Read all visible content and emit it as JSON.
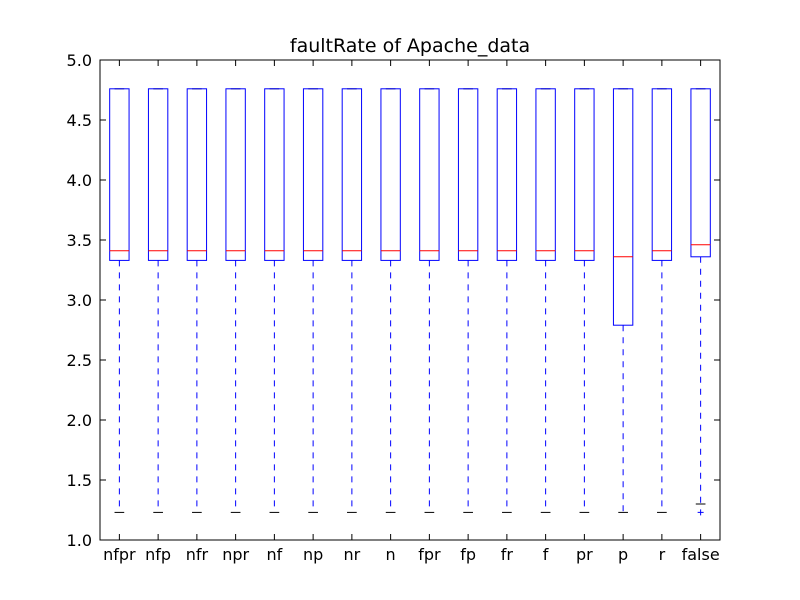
{
  "chart_data": {
    "type": "boxplot",
    "title": "faultRate of Apache_data",
    "xlabel": "",
    "ylabel": "",
    "ylim": [
      1.0,
      5.0
    ],
    "yticks": [
      "1.0",
      "1.5",
      "2.0",
      "2.5",
      "3.0",
      "3.5",
      "4.0",
      "4.5",
      "5.0"
    ],
    "categories": [
      "nfpr",
      "nfp",
      "nfr",
      "npr",
      "nf",
      "np",
      "nr",
      "n",
      "fpr",
      "fp",
      "fr",
      "f",
      "pr",
      "p",
      "r",
      "false"
    ],
    "boxes": [
      {
        "whislo": 1.23,
        "q1": 3.33,
        "med": 3.41,
        "q3": 4.76,
        "whishi": 4.76,
        "fliers": []
      },
      {
        "whislo": 1.23,
        "q1": 3.33,
        "med": 3.41,
        "q3": 4.76,
        "whishi": 4.76,
        "fliers": []
      },
      {
        "whislo": 1.23,
        "q1": 3.33,
        "med": 3.41,
        "q3": 4.76,
        "whishi": 4.76,
        "fliers": []
      },
      {
        "whislo": 1.23,
        "q1": 3.33,
        "med": 3.41,
        "q3": 4.76,
        "whishi": 4.76,
        "fliers": []
      },
      {
        "whislo": 1.23,
        "q1": 3.33,
        "med": 3.41,
        "q3": 4.76,
        "whishi": 4.76,
        "fliers": []
      },
      {
        "whislo": 1.23,
        "q1": 3.33,
        "med": 3.41,
        "q3": 4.76,
        "whishi": 4.76,
        "fliers": []
      },
      {
        "whislo": 1.23,
        "q1": 3.33,
        "med": 3.41,
        "q3": 4.76,
        "whishi": 4.76,
        "fliers": []
      },
      {
        "whislo": 1.23,
        "q1": 3.33,
        "med": 3.41,
        "q3": 4.76,
        "whishi": 4.76,
        "fliers": []
      },
      {
        "whislo": 1.23,
        "q1": 3.33,
        "med": 3.41,
        "q3": 4.76,
        "whishi": 4.76,
        "fliers": []
      },
      {
        "whislo": 1.23,
        "q1": 3.33,
        "med": 3.41,
        "q3": 4.76,
        "whishi": 4.76,
        "fliers": []
      },
      {
        "whislo": 1.23,
        "q1": 3.33,
        "med": 3.41,
        "q3": 4.76,
        "whishi": 4.76,
        "fliers": []
      },
      {
        "whislo": 1.23,
        "q1": 3.33,
        "med": 3.41,
        "q3": 4.76,
        "whishi": 4.76,
        "fliers": []
      },
      {
        "whislo": 1.23,
        "q1": 3.33,
        "med": 3.41,
        "q3": 4.76,
        "whishi": 4.76,
        "fliers": []
      },
      {
        "whislo": 1.23,
        "q1": 2.79,
        "med": 3.36,
        "q3": 4.76,
        "whishi": 4.76,
        "fliers": []
      },
      {
        "whislo": 1.23,
        "q1": 3.33,
        "med": 3.41,
        "q3": 4.76,
        "whishi": 4.76,
        "fliers": []
      },
      {
        "whislo": 1.3,
        "q1": 3.36,
        "med": 3.46,
        "q3": 4.76,
        "whishi": 4.76,
        "fliers": [
          1.23
        ]
      }
    ],
    "grid": false,
    "legend": "none",
    "colors": {
      "box": "#0000ff",
      "median": "#ff0000",
      "cap": "#000000",
      "flier": "#0000ff",
      "axes": "#000000"
    }
  }
}
